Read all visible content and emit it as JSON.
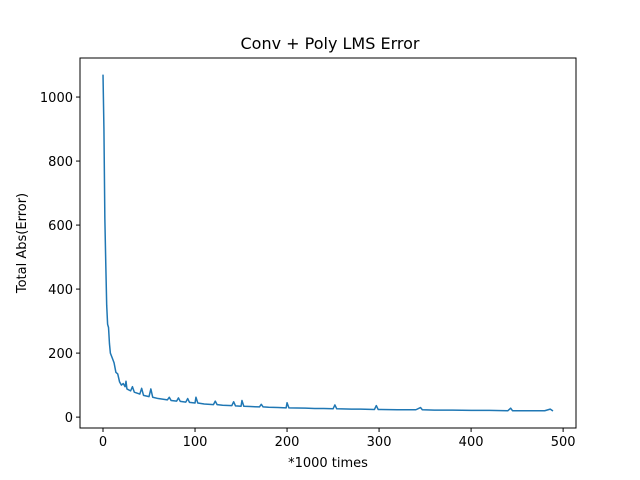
{
  "chart_data": {
    "type": "line",
    "title": "Conv + Poly LMS Error",
    "xlabel": "*1000 times",
    "ylabel": "Total Abs(Error)",
    "color": "#1f77b4",
    "x": [
      0,
      1,
      2,
      3,
      4,
      5,
      6,
      7,
      8,
      10,
      12,
      14,
      16,
      18,
      20,
      22,
      24,
      25,
      26,
      30,
      32,
      34,
      40,
      42,
      44,
      50,
      52,
      54,
      60,
      70,
      72,
      74,
      80,
      82,
      84,
      90,
      92,
      94,
      100,
      101,
      103,
      110,
      120,
      122,
      124,
      130,
      140,
      142,
      144,
      150,
      151,
      153,
      160,
      170,
      172,
      174,
      180,
      190,
      199,
      200,
      202,
      220,
      230,
      240,
      250,
      252,
      254,
      270,
      280,
      295,
      297,
      299,
      320,
      340,
      345,
      347,
      360,
      380,
      400,
      420,
      440,
      443,
      445,
      460,
      480,
      486,
      489
    ],
    "values": [
      1070,
      900,
      620,
      480,
      350,
      290,
      280,
      230,
      200,
      185,
      170,
      140,
      135,
      110,
      100,
      105,
      95,
      112,
      88,
      82,
      95,
      78,
      72,
      90,
      68,
      64,
      88,
      62,
      58,
      54,
      62,
      52,
      50,
      60,
      49,
      47,
      58,
      46,
      44,
      62,
      44,
      41,
      39,
      50,
      39,
      37,
      36,
      48,
      35,
      34,
      52,
      34,
      33,
      32,
      40,
      32,
      31,
      30,
      29,
      45,
      29,
      28,
      27,
      27,
      26,
      38,
      26,
      25,
      25,
      24,
      36,
      24,
      23,
      23,
      30,
      23,
      22,
      22,
      21,
      21,
      20,
      28,
      20,
      20,
      20,
      25,
      19
    ],
    "xlim": [
      -25,
      514
    ],
    "xticks": [
      0,
      100,
      200,
      300,
      400,
      500
    ],
    "ylim": [
      -34,
      1122
    ],
    "yticks": [
      0,
      200,
      400,
      600,
      800,
      1000
    ]
  }
}
